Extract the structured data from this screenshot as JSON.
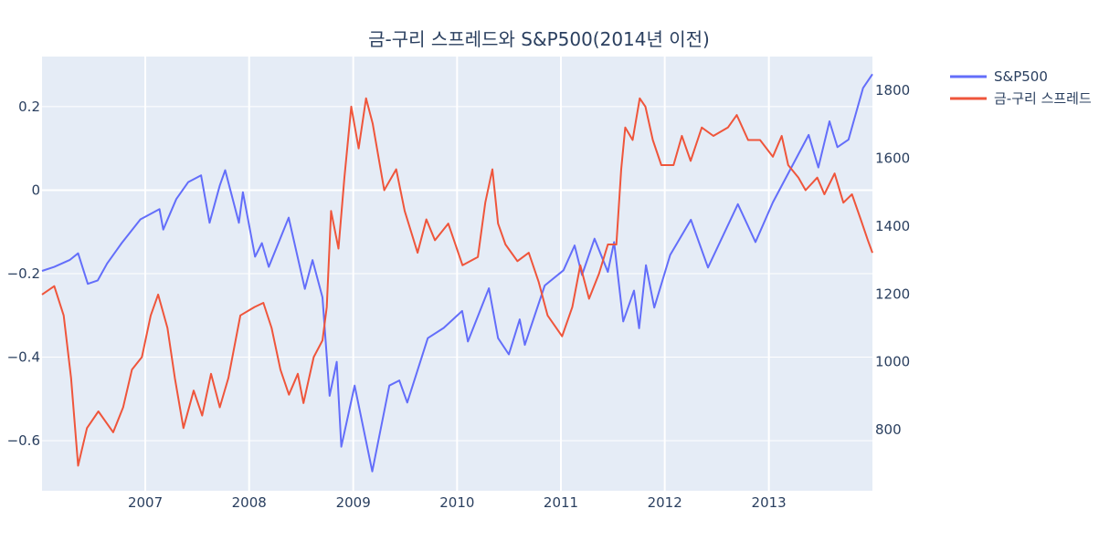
{
  "chart_data": {
    "type": "line",
    "title": "금-구리 스프레드와 S&P500(2014년 이전)",
    "xlabel": "",
    "ylabel_left": "",
    "ylabel_right": "",
    "x_range": [
      "2006-01-03",
      "2013-12-31"
    ],
    "x_ticks": [
      "2007",
      "2008",
      "2009",
      "2010",
      "2011",
      "2012",
      "2013"
    ],
    "y_left_range": [
      -0.72,
      0.32
    ],
    "y_left_ticks": [
      0.2,
      0,
      -0.2,
      -0.4,
      -0.6
    ],
    "y_left_tick_labels": [
      "0.2",
      "0",
      "−0.2",
      "−0.4",
      "−0.6"
    ],
    "y_right_range": [
      620,
      1900
    ],
    "y_right_ticks": [
      800,
      1000,
      1200,
      1400,
      1600,
      1800
    ],
    "grid": true,
    "legend_position": "top-right",
    "series": [
      {
        "name": "S&P500",
        "color": "#636efa",
        "axis": "right",
        "points": [
          [
            "2006-01-03",
            1268
          ],
          [
            "2006-02-15",
            1280
          ],
          [
            "2006-04-10",
            1300
          ],
          [
            "2006-05-10",
            1320
          ],
          [
            "2006-06-13",
            1230
          ],
          [
            "2006-07-18",
            1240
          ],
          [
            "2006-08-20",
            1290
          ],
          [
            "2006-10-10",
            1350
          ],
          [
            "2006-12-15",
            1420
          ],
          [
            "2007-02-20",
            1450
          ],
          [
            "2007-03-05",
            1390
          ],
          [
            "2007-04-20",
            1480
          ],
          [
            "2007-06-01",
            1530
          ],
          [
            "2007-07-16",
            1550
          ],
          [
            "2007-08-15",
            1410
          ],
          [
            "2007-09-20",
            1520
          ],
          [
            "2007-10-09",
            1565
          ],
          [
            "2007-11-26",
            1410
          ],
          [
            "2007-12-10",
            1500
          ],
          [
            "2008-01-22",
            1310
          ],
          [
            "2008-02-15",
            1350
          ],
          [
            "2008-03-10",
            1280
          ],
          [
            "2008-05-19",
            1425
          ],
          [
            "2008-07-15",
            1215
          ],
          [
            "2008-08-11",
            1300
          ],
          [
            "2008-09-15",
            1190
          ],
          [
            "2008-10-10",
            900
          ],
          [
            "2008-11-04",
            1000
          ],
          [
            "2008-11-20",
            750
          ],
          [
            "2009-01-06",
            930
          ],
          [
            "2009-03-09",
            677
          ],
          [
            "2009-05-08",
            930
          ],
          [
            "2009-06-12",
            945
          ],
          [
            "2009-07-10",
            880
          ],
          [
            "2009-09-20",
            1070
          ],
          [
            "2009-11-15",
            1100
          ],
          [
            "2010-01-19",
            1150
          ],
          [
            "2010-02-08",
            1060
          ],
          [
            "2010-04-23",
            1217
          ],
          [
            "2010-05-25",
            1070
          ],
          [
            "2010-07-02",
            1022
          ],
          [
            "2010-08-09",
            1125
          ],
          [
            "2010-08-27",
            1050
          ],
          [
            "2010-11-05",
            1225
          ],
          [
            "2011-01-10",
            1270
          ],
          [
            "2011-02-18",
            1343
          ],
          [
            "2011-03-16",
            1256
          ],
          [
            "2011-04-29",
            1363
          ],
          [
            "2011-06-15",
            1265
          ],
          [
            "2011-07-07",
            1353
          ],
          [
            "2011-08-08",
            1119
          ],
          [
            "2011-09-15",
            1210
          ],
          [
            "2011-10-03",
            1099
          ],
          [
            "2011-10-27",
            1285
          ],
          [
            "2011-11-25",
            1160
          ],
          [
            "2012-01-20",
            1315
          ],
          [
            "2012-04-02",
            1419
          ],
          [
            "2012-06-01",
            1278
          ],
          [
            "2012-09-14",
            1465
          ],
          [
            "2012-11-15",
            1353
          ],
          [
            "2013-01-15",
            1470
          ],
          [
            "2013-05-21",
            1669
          ],
          [
            "2013-06-24",
            1573
          ],
          [
            "2013-08-02",
            1709
          ],
          [
            "2013-08-30",
            1633
          ],
          [
            "2013-10-08",
            1655
          ],
          [
            "2013-11-28",
            1807
          ],
          [
            "2013-12-31",
            1848
          ]
        ]
      },
      {
        "name": "금-구리 스프레드",
        "color": "#ef553b",
        "axis": "left",
        "points": [
          [
            "2006-01-03",
            -0.25
          ],
          [
            "2006-02-15",
            -0.23
          ],
          [
            "2006-03-20",
            -0.3
          ],
          [
            "2006-04-15",
            -0.45
          ],
          [
            "2006-05-10",
            -0.66
          ],
          [
            "2006-06-10",
            -0.57
          ],
          [
            "2006-07-20",
            -0.53
          ],
          [
            "2006-09-10",
            -0.58
          ],
          [
            "2006-10-15",
            -0.52
          ],
          [
            "2006-11-15",
            -0.43
          ],
          [
            "2006-12-20",
            -0.4
          ],
          [
            "2007-01-20",
            -0.3
          ],
          [
            "2007-02-15",
            -0.25
          ],
          [
            "2007-03-20",
            -0.33
          ],
          [
            "2007-04-15",
            -0.45
          ],
          [
            "2007-05-15",
            -0.57
          ],
          [
            "2007-06-20",
            -0.48
          ],
          [
            "2007-07-20",
            -0.54
          ],
          [
            "2007-08-20",
            -0.44
          ],
          [
            "2007-09-20",
            -0.52
          ],
          [
            "2007-10-20",
            -0.45
          ],
          [
            "2007-12-01",
            -0.3
          ],
          [
            "2008-01-20",
            -0.28
          ],
          [
            "2008-02-20",
            -0.27
          ],
          [
            "2008-03-20",
            -0.33
          ],
          [
            "2008-04-20",
            -0.43
          ],
          [
            "2008-05-20",
            -0.49
          ],
          [
            "2008-06-20",
            -0.44
          ],
          [
            "2008-07-10",
            -0.51
          ],
          [
            "2008-08-15",
            -0.4
          ],
          [
            "2008-09-15",
            -0.36
          ],
          [
            "2008-09-30",
            -0.28
          ],
          [
            "2008-10-15",
            -0.05
          ],
          [
            "2008-11-10",
            -0.14
          ],
          [
            "2008-12-01",
            0.03
          ],
          [
            "2008-12-25",
            0.2
          ],
          [
            "2009-01-20",
            0.1
          ],
          [
            "2009-02-15",
            0.22
          ],
          [
            "2009-03-10",
            0.16
          ],
          [
            "2009-04-20",
            0.0
          ],
          [
            "2009-06-01",
            0.05
          ],
          [
            "2009-07-01",
            -0.05
          ],
          [
            "2009-08-15",
            -0.15
          ],
          [
            "2009-09-15",
            -0.07
          ],
          [
            "2009-10-15",
            -0.12
          ],
          [
            "2009-12-01",
            -0.08
          ],
          [
            "2010-01-20",
            -0.18
          ],
          [
            "2010-03-15",
            -0.16
          ],
          [
            "2010-04-10",
            -0.03
          ],
          [
            "2010-05-05",
            0.05
          ],
          [
            "2010-05-25",
            -0.08
          ],
          [
            "2010-06-20",
            -0.13
          ],
          [
            "2010-08-01",
            -0.17
          ],
          [
            "2010-09-10",
            -0.15
          ],
          [
            "2010-10-15",
            -0.22
          ],
          [
            "2010-11-15",
            -0.3
          ],
          [
            "2011-01-05",
            -0.35
          ],
          [
            "2011-02-10",
            -0.28
          ],
          [
            "2011-03-10",
            -0.18
          ],
          [
            "2011-04-10",
            -0.26
          ],
          [
            "2011-05-15",
            -0.2
          ],
          [
            "2011-06-15",
            -0.13
          ],
          [
            "2011-07-15",
            -0.13
          ],
          [
            "2011-08-01",
            0.05
          ],
          [
            "2011-08-15",
            0.15
          ],
          [
            "2011-09-10",
            0.12
          ],
          [
            "2011-10-05",
            0.22
          ],
          [
            "2011-10-25",
            0.2
          ],
          [
            "2011-11-20",
            0.12
          ],
          [
            "2011-12-20",
            0.06
          ],
          [
            "2012-02-01",
            0.06
          ],
          [
            "2012-03-01",
            0.13
          ],
          [
            "2012-04-01",
            0.07
          ],
          [
            "2012-05-10",
            0.15
          ],
          [
            "2012-06-20",
            0.13
          ],
          [
            "2012-08-10",
            0.15
          ],
          [
            "2012-09-10",
            0.18
          ],
          [
            "2012-10-20",
            0.12
          ],
          [
            "2012-12-01",
            0.12
          ],
          [
            "2013-01-15",
            0.08
          ],
          [
            "2013-02-15",
            0.13
          ],
          [
            "2013-03-10",
            0.06
          ],
          [
            "2013-04-15",
            0.03
          ],
          [
            "2013-05-10",
            0.0
          ],
          [
            "2013-06-20",
            0.03
          ],
          [
            "2013-07-15",
            -0.01
          ],
          [
            "2013-08-20",
            0.04
          ],
          [
            "2013-09-20",
            -0.03
          ],
          [
            "2013-10-20",
            -0.01
          ],
          [
            "2013-11-20",
            -0.07
          ],
          [
            "2013-12-15",
            -0.12
          ],
          [
            "2013-12-31",
            -0.15
          ]
        ]
      }
    ]
  }
}
